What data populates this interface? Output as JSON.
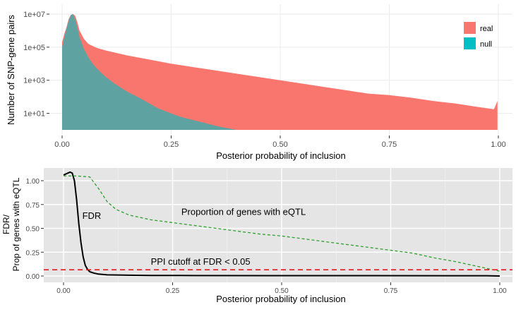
{
  "chart_data": [
    {
      "type": "area",
      "xlabel": "Posterior probability of inclusion",
      "ylabel": "Number of SNP-gene pairs",
      "yscale": "log10",
      "xlim": [
        0,
        1
      ],
      "ylim_log10": [
        0,
        7
      ],
      "x_ticks": [
        0,
        0.25,
        0.5,
        0.75,
        1.0
      ],
      "x_tick_labels": [
        "0.00",
        "0.25",
        "0.50",
        "0.75",
        "1.00"
      ],
      "y_ticks_log10": [
        1,
        3,
        5,
        7
      ],
      "y_tick_labels": [
        "1e+01",
        "1e+03",
        "1e+05",
        "1e+07"
      ],
      "legend": {
        "placement": "top-right",
        "items": [
          {
            "label": "real",
            "color": "#f8766d"
          },
          {
            "label": "null",
            "color": "#00bfc4"
          }
        ]
      },
      "series": [
        {
          "name": "real",
          "color": "#f8766d",
          "x": [
            0.0,
            0.005,
            0.01,
            0.015,
            0.02,
            0.025,
            0.03,
            0.035,
            0.04,
            0.05,
            0.06,
            0.08,
            0.1,
            0.15,
            0.2,
            0.25,
            0.3,
            0.35,
            0.4,
            0.45,
            0.5,
            0.55,
            0.6,
            0.65,
            0.7,
            0.75,
            0.8,
            0.85,
            0.9,
            0.95,
            0.99,
            0.998
          ],
          "log10_count": [
            5.3,
            5.8,
            6.2,
            6.7,
            6.95,
            7.0,
            6.9,
            6.5,
            6.0,
            5.5,
            5.2,
            4.95,
            4.8,
            4.5,
            4.25,
            4.0,
            3.8,
            3.6,
            3.4,
            3.2,
            3.0,
            2.8,
            2.6,
            2.4,
            2.2,
            2.1,
            1.95,
            1.75,
            1.6,
            1.4,
            1.25,
            1.75
          ]
        },
        {
          "name": "null",
          "color": "#00bfc4",
          "x": [
            0.0,
            0.005,
            0.01,
            0.015,
            0.02,
            0.025,
            0.03,
            0.035,
            0.04,
            0.05,
            0.06,
            0.07,
            0.08,
            0.1,
            0.12,
            0.15,
            0.18,
            0.2,
            0.22,
            0.25,
            0.27,
            0.3,
            0.33,
            0.36,
            0.4
          ],
          "log10_count": [
            5.0,
            5.6,
            6.1,
            6.6,
            6.95,
            7.0,
            6.7,
            6.2,
            5.6,
            4.9,
            4.4,
            4.0,
            3.7,
            3.2,
            2.8,
            2.3,
            1.9,
            1.6,
            1.3,
            1.0,
            0.8,
            0.6,
            0.4,
            0.2,
            0.0
          ]
        }
      ]
    },
    {
      "type": "line",
      "xlabel": "Posterior probability of inclusion",
      "ylabel_lines": [
        "FDR/",
        "Prop of genes with eQTL"
      ],
      "xlim": [
        0,
        1
      ],
      "ylim": [
        -0.05,
        1.12
      ],
      "x_ticks": [
        0,
        0.25,
        0.5,
        0.75,
        1.0
      ],
      "x_tick_labels": [
        "0.00",
        "0.25",
        "0.50",
        "0.75",
        "1.00"
      ],
      "y_ticks": [
        0,
        0.25,
        0.5,
        0.75,
        1.0
      ],
      "y_tick_labels": [
        "0.00",
        "0.25",
        "0.50",
        "0.75",
        "1.00"
      ],
      "series": [
        {
          "name": "FDR",
          "color": "#000000",
          "dash": "solid",
          "x": [
            0.0,
            0.01,
            0.015,
            0.02,
            0.025,
            0.03,
            0.035,
            0.04,
            0.045,
            0.05,
            0.055,
            0.06,
            0.07,
            0.08,
            0.1,
            0.15,
            0.2,
            0.3,
            0.5,
            0.7,
            0.9,
            0.97,
            1.0
          ],
          "y": [
            1.06,
            1.08,
            1.09,
            1.08,
            1.0,
            0.8,
            0.55,
            0.35,
            0.2,
            0.11,
            0.07,
            0.045,
            0.03,
            0.02,
            0.012,
            0.008,
            0.006,
            0.005,
            0.004,
            0.004,
            0.003,
            0.003,
            0.0
          ]
        },
        {
          "name": "Proportion of genes with eQTL",
          "color": "#2ca02c",
          "dash": "dashed",
          "x": [
            0.0,
            0.03,
            0.06,
            0.08,
            0.1,
            0.12,
            0.15,
            0.2,
            0.25,
            0.3,
            0.35,
            0.4,
            0.45,
            0.5,
            0.55,
            0.6,
            0.65,
            0.7,
            0.75,
            0.8,
            0.85,
            0.9,
            0.95,
            1.0
          ],
          "y": [
            1.05,
            1.05,
            1.04,
            0.92,
            0.78,
            0.7,
            0.64,
            0.59,
            0.56,
            0.53,
            0.5,
            0.47,
            0.44,
            0.42,
            0.39,
            0.36,
            0.33,
            0.3,
            0.27,
            0.24,
            0.19,
            0.15,
            0.1,
            0.05
          ]
        }
      ],
      "hline": {
        "y": 0.065,
        "color": "#e31a1c",
        "dash": "dashed"
      },
      "annotations": [
        {
          "text": "FDR",
          "x": 0.043,
          "y": 0.6
        },
        {
          "text": "Proportion of genes with eQTL",
          "x": 0.27,
          "y": 0.64
        },
        {
          "text": "PPI cutoff at FDR < 0.05",
          "x": 0.2,
          "y": 0.12
        }
      ]
    }
  ]
}
